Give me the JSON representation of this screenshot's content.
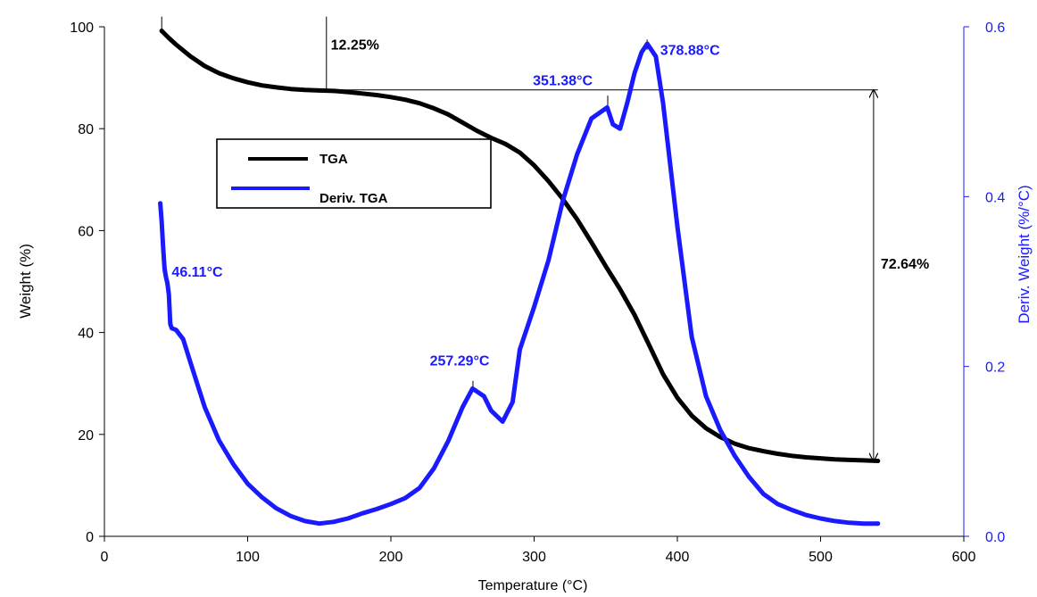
{
  "chart_data": {
    "type": "line",
    "xlabel": "Temperature (°C)",
    "ylabel_left": "Weight (%)",
    "ylabel_right": "Deriv. Weight (%/°C)",
    "xlim": [
      0,
      600
    ],
    "ylim_left": [
      0,
      100
    ],
    "ylim_right": [
      0.0,
      0.6
    ],
    "x_ticks": [
      0,
      100,
      200,
      300,
      400,
      500,
      600
    ],
    "x_tick_labels": [
      "0",
      "100",
      "200",
      "300",
      "400",
      "500",
      "600"
    ],
    "y_left_ticks": [
      0,
      20,
      40,
      60,
      80,
      100
    ],
    "y_left_tick_labels": [
      "0",
      "20",
      "40",
      "60",
      "80",
      "100"
    ],
    "y_right_ticks": [
      0.0,
      0.2,
      0.4,
      0.6
    ],
    "y_right_tick_labels": [
      "0.0",
      "0.2",
      "0.4",
      "0.6"
    ],
    "grid": false,
    "legend_position": "upper-left",
    "colors": {
      "tga": "#000000",
      "dtga": "#1a1aff",
      "axis_right": "#1a1aff"
    },
    "series": [
      {
        "name": "TGA",
        "axis": "left",
        "x": [
          40,
          45,
          50,
          60,
          70,
          80,
          90,
          100,
          110,
          120,
          130,
          140,
          150,
          160,
          170,
          180,
          190,
          200,
          210,
          220,
          230,
          240,
          250,
          260,
          270,
          280,
          290,
          300,
          310,
          320,
          330,
          340,
          350,
          360,
          370,
          380,
          390,
          400,
          410,
          420,
          430,
          440,
          450,
          460,
          470,
          480,
          490,
          500,
          510,
          520,
          530,
          540
        ],
        "y": [
          99.2,
          97.8,
          96.5,
          94.2,
          92.3,
          90.9,
          89.9,
          89.1,
          88.5,
          88.1,
          87.8,
          87.6,
          87.5,
          87.4,
          87.2,
          86.9,
          86.6,
          86.2,
          85.7,
          85.0,
          84.0,
          82.8,
          81.2,
          79.6,
          78.2,
          77.0,
          75.3,
          72.8,
          69.7,
          66.2,
          62.2,
          57.7,
          53.0,
          48.5,
          43.5,
          37.7,
          31.8,
          27.2,
          23.7,
          21.2,
          19.5,
          18.2,
          17.3,
          16.7,
          16.2,
          15.8,
          15.5,
          15.3,
          15.1,
          15.0,
          14.9,
          14.8
        ]
      },
      {
        "name": "Deriv. TGA",
        "axis": "right",
        "x": [
          39,
          40,
          41,
          42,
          43,
          44,
          45,
          46,
          47,
          50,
          55,
          60,
          70,
          80,
          90,
          100,
          110,
          120,
          130,
          140,
          150,
          160,
          170,
          180,
          190,
          200,
          210,
          220,
          230,
          240,
          250,
          257,
          265,
          270,
          278,
          285,
          290,
          300,
          310,
          320,
          330,
          340,
          351,
          355,
          360,
          365,
          370,
          375,
          379,
          385,
          390,
          400,
          410,
          420,
          430,
          440,
          450,
          460,
          470,
          480,
          490,
          500,
          510,
          520,
          530,
          540
        ],
        "y": [
          0.392,
          0.37,
          0.34,
          0.315,
          0.305,
          0.298,
          0.285,
          0.25,
          0.245,
          0.243,
          0.232,
          0.205,
          0.152,
          0.113,
          0.085,
          0.062,
          0.046,
          0.033,
          0.024,
          0.018,
          0.015,
          0.017,
          0.021,
          0.027,
          0.032,
          0.038,
          0.045,
          0.057,
          0.08,
          0.112,
          0.152,
          0.174,
          0.165,
          0.148,
          0.135,
          0.158,
          0.22,
          0.27,
          0.325,
          0.395,
          0.45,
          0.492,
          0.505,
          0.485,
          0.48,
          0.51,
          0.545,
          0.57,
          0.58,
          0.565,
          0.51,
          0.365,
          0.235,
          0.165,
          0.125,
          0.095,
          0.07,
          0.05,
          0.038,
          0.031,
          0.025,
          0.021,
          0.018,
          0.016,
          0.015,
          0.015
        ]
      }
    ],
    "annotations": [
      {
        "text": "12.25%",
        "x": 158,
        "y_left": 95.5,
        "color": "#000000",
        "anchor": "start"
      },
      {
        "text": "72.64%",
        "x": 542,
        "y_left": 52.5,
        "color": "#000000",
        "anchor": "start"
      },
      {
        "text": "351.38°C",
        "x": 320,
        "y_left": 88.5,
        "color": "#1a1aff",
        "anchor": "middle"
      },
      {
        "text": "378.88°C",
        "x": 388,
        "y_left": 94.5,
        "color": "#1a1aff",
        "anchor": "start"
      },
      {
        "text": "257.29°C",
        "x": 248,
        "y_left": 33.5,
        "color": "#1a1aff",
        "anchor": "middle"
      },
      {
        "text": "46.11°C",
        "x": 47,
        "y_left": 51,
        "color": "#1a1aff",
        "anchor": "start"
      }
    ],
    "marker_lines": [
      {
        "x1": 155,
        "y1": 102,
        "x2": 155,
        "y2": 87.6
      },
      {
        "x1": 155,
        "y1": 87.6,
        "x2": 540,
        "y2": 87.6
      },
      {
        "x1": 537,
        "y1": 87.6,
        "x2": 537,
        "y2": 14.8,
        "arrows": true
      },
      {
        "x1": 40,
        "y1": 102,
        "x2": 40,
        "y2": 99
      },
      {
        "x1": 351.4,
        "y1": 86.5,
        "x2": 351.4,
        "y2": 84.5
      },
      {
        "x1": 378.9,
        "y1": 97.5,
        "x2": 378.9,
        "y2": 95.5
      },
      {
        "x1": 257.3,
        "y1": 30.5,
        "x2": 257.3,
        "y2": 28.8
      }
    ]
  }
}
